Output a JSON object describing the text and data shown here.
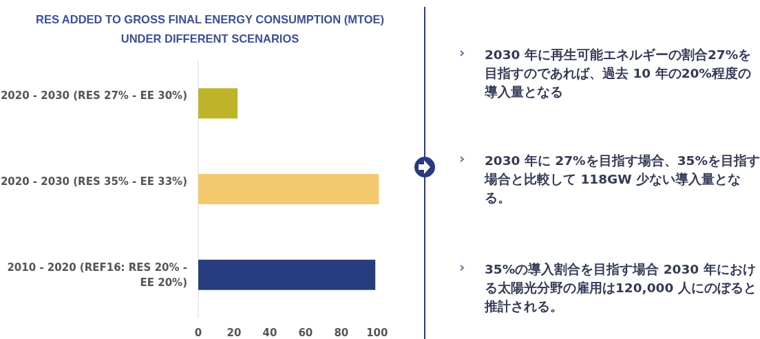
{
  "chart_data": {
    "type": "bar",
    "orientation": "horizontal",
    "title": "RES ADDED TO GROSS FINAL ENERGY CONSUMPTION (MTOE) UNDER DIFFERENT SCENARIOS",
    "categories": [
      "2020 - 2030 (RES 27% - EE 30%)",
      "2020 - 2030 (RES 35% - EE 33%)",
      "2010 - 2020 (REF16: RES 20% - EE 20%)"
    ],
    "values": [
      22,
      101,
      99
    ],
    "colors": [
      "#bfb32a",
      "#f3cb6e",
      "#283c80"
    ],
    "xlim": [
      0,
      102
    ],
    "xticks": [
      0,
      20,
      40,
      60,
      80,
      100
    ],
    "grid": false,
    "annotations": [
      "2030 年に再生可能エネルギーの割合27%を目指すのであれば、過去 10 年の20%程度の導入量となる",
      "2030 年に 27%を目指す場合、35%を目指す場合と比較して 118GW 少ない導入量となる。",
      "35%の導入割合を目指す場合 2030 年における太陽光分野の雇用は120,000 人にのぼると推計される。"
    ]
  }
}
